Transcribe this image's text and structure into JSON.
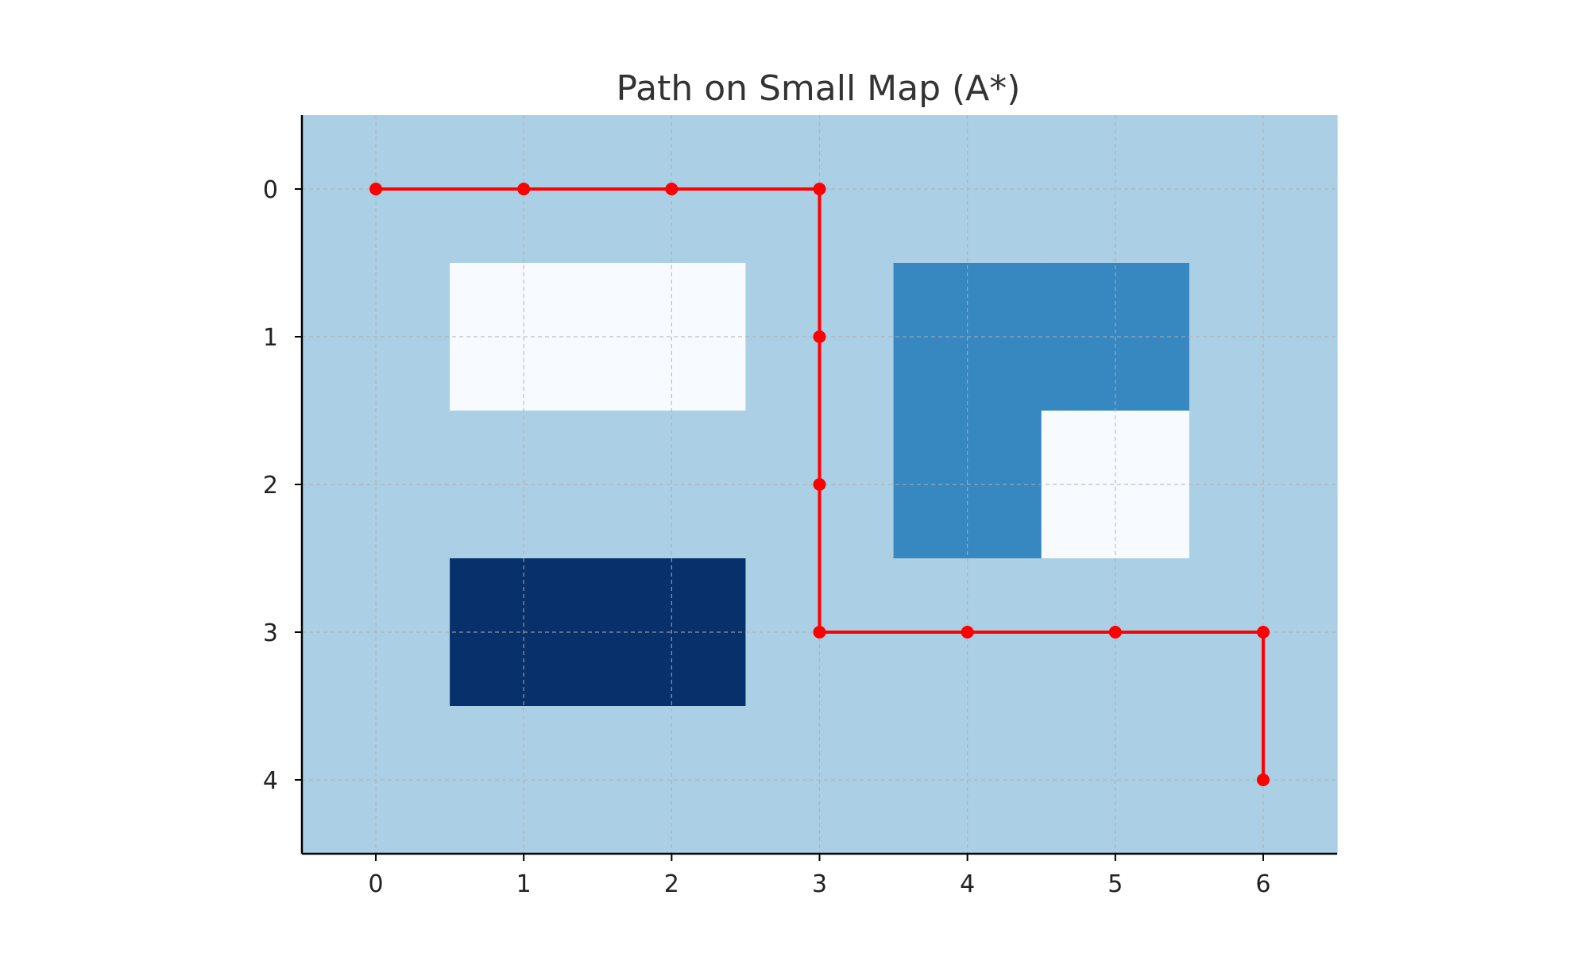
{
  "chart_data": {
    "type": "heatmap",
    "title": "Path on Small Map (A*)",
    "xlabel": "",
    "ylabel": "",
    "x_ticks": [
      "0",
      "1",
      "2",
      "3",
      "4",
      "5",
      "6"
    ],
    "y_ticks": [
      "0",
      "1",
      "2",
      "3",
      "4"
    ],
    "xlim": [
      -0.5,
      6.5
    ],
    "ylim": [
      4.5,
      -0.5
    ],
    "y_axis_inverted": true,
    "grid": true,
    "colormap": "Blues",
    "grid_values": [
      [
        1,
        1,
        1,
        1,
        1,
        1,
        1
      ],
      [
        1,
        0,
        0,
        1,
        2,
        2,
        1
      ],
      [
        1,
        1,
        1,
        1,
        2,
        0,
        1
      ],
      [
        1,
        3,
        3,
        1,
        1,
        1,
        1
      ],
      [
        1,
        1,
        1,
        1,
        1,
        1,
        1
      ]
    ],
    "value_colors": {
      "0": "#f7fbff",
      "1": "#abcfe5",
      "2": "#3787c0",
      "3": "#08306b"
    },
    "path": {
      "color": "#ff0000",
      "points": [
        {
          "x": 0,
          "y": 0
        },
        {
          "x": 1,
          "y": 0
        },
        {
          "x": 2,
          "y": 0
        },
        {
          "x": 3,
          "y": 0
        },
        {
          "x": 3,
          "y": 1
        },
        {
          "x": 3,
          "y": 2
        },
        {
          "x": 3,
          "y": 3
        },
        {
          "x": 4,
          "y": 3
        },
        {
          "x": 5,
          "y": 3
        },
        {
          "x": 6,
          "y": 3
        },
        {
          "x": 6,
          "y": 4
        }
      ]
    }
  }
}
